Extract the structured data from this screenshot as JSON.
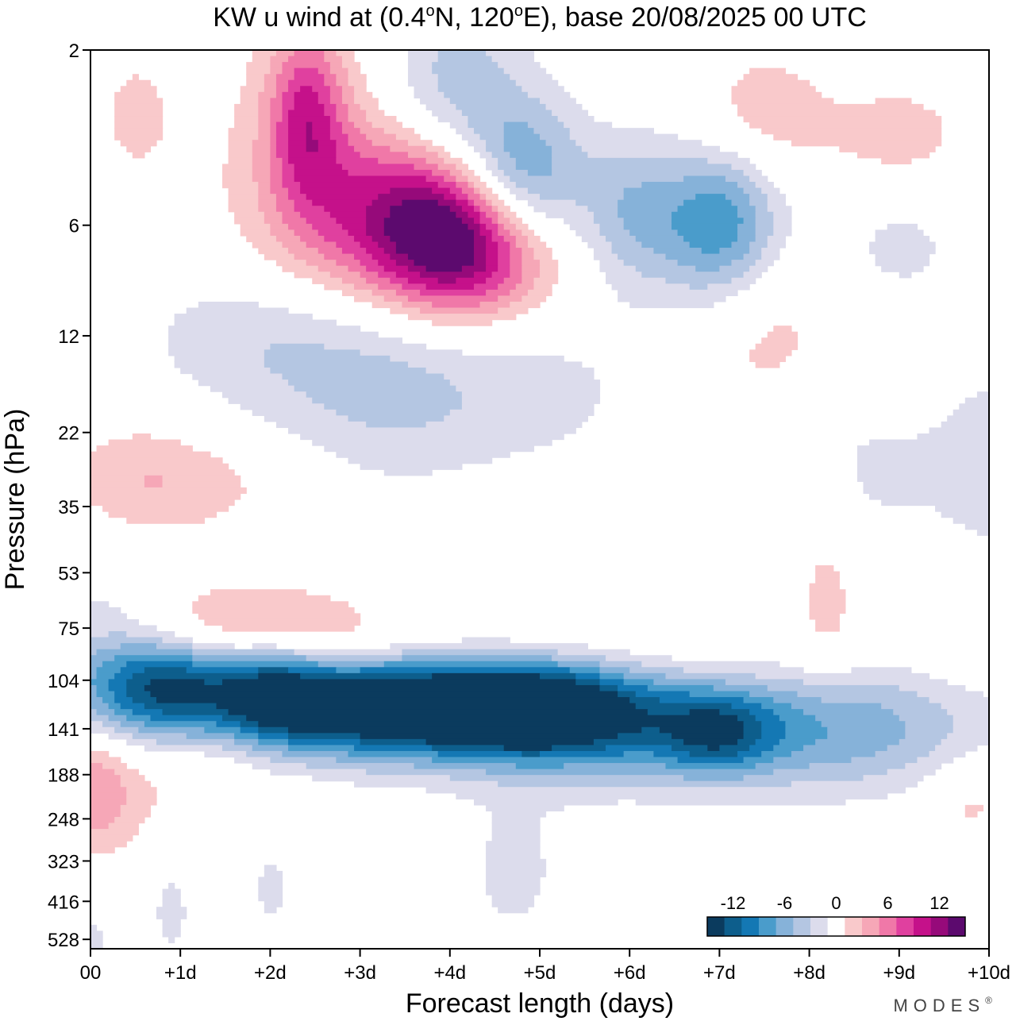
{
  "chart_data": {
    "type": "heatmap",
    "title_main": "KW u wind at (0.4",
    "title_deg1": "o",
    "title_mid": "N, 120",
    "title_deg2": "o",
    "title_end": "E),  base 20/08/2025  00 UTC",
    "xlabel": "Forecast length (days)",
    "ylabel": "Pressure (hPa)",
    "xlim": [
      0,
      10
    ],
    "x_ticks": [
      {
        "value": 0,
        "label": "00"
      },
      {
        "value": 1,
        "label": "+1d"
      },
      {
        "value": 2,
        "label": "+2d"
      },
      {
        "value": 3,
        "label": "+3d"
      },
      {
        "value": 4,
        "label": "+4d"
      },
      {
        "value": 5,
        "label": "+5d"
      },
      {
        "value": 6,
        "label": "+6d"
      },
      {
        "value": 7,
        "label": "+7d"
      },
      {
        "value": 8,
        "label": "+8d"
      },
      {
        "value": 9,
        "label": "+9d"
      },
      {
        "value": 10,
        "label": "+10d"
      }
    ],
    "y_ticks": [
      {
        "value": 2,
        "label": "2"
      },
      {
        "value": 6,
        "label": "6"
      },
      {
        "value": 12,
        "label": "12"
      },
      {
        "value": 22,
        "label": "22"
      },
      {
        "value": 35,
        "label": "35"
      },
      {
        "value": 53,
        "label": "53"
      },
      {
        "value": 75,
        "label": "75"
      },
      {
        "value": 104,
        "label": "104"
      },
      {
        "value": 141,
        "label": "141"
      },
      {
        "value": 188,
        "label": "188"
      },
      {
        "value": 248,
        "label": "248"
      },
      {
        "value": 323,
        "label": "323"
      },
      {
        "value": 416,
        "label": "416"
      },
      {
        "value": 528,
        "label": "528"
      }
    ],
    "contour_levels": [
      -16,
      -14,
      -12,
      -10,
      -8,
      -6,
      -4,
      -2,
      2,
      4,
      6,
      8,
      10,
      12,
      14,
      16
    ],
    "colorbar_colors": [
      "#0b3b5e",
      "#0d5e8c",
      "#1478b4",
      "#4a9ccb",
      "#86b2d9",
      "#b4c6e2",
      "#dcdcec",
      "#ffffff",
      "#f9c9cb",
      "#f6a7b7",
      "#f078a8",
      "#e0409f",
      "#c5118a",
      "#960a7a",
      "#5c0a6e"
    ],
    "colorbar_labels": [
      {
        "value": -12,
        "label": "-12"
      },
      {
        "value": -6,
        "label": "-6"
      },
      {
        "value": 0,
        "label": "0"
      },
      {
        "value": 6,
        "label": "6"
      },
      {
        "value": 12,
        "label": "12"
      }
    ],
    "features": [
      {
        "x": 4.0,
        "p": 122,
        "value": -13,
        "sx": 1.2,
        "sy": 0.04
      },
      {
        "x": 5.0,
        "p": 125,
        "value": -11,
        "sx": 0.7,
        "sy": 0.04
      },
      {
        "x": 3.0,
        "p": 120,
        "value": -10,
        "sx": 1.0,
        "sy": 0.045
      },
      {
        "x": 2.0,
        "p": 112,
        "value": -10,
        "sx": 0.45,
        "sy": 0.04
      },
      {
        "x": 1.0,
        "p": 108,
        "value": -10,
        "sx": 0.5,
        "sy": 0.04
      },
      {
        "x": 6.2,
        "p": 135,
        "value": -8,
        "sx": 0.8,
        "sy": 0.05
      },
      {
        "x": 7.0,
        "p": 145,
        "value": -9,
        "sx": 0.45,
        "sy": 0.035
      },
      {
        "x": 8.0,
        "p": 140,
        "value": -6,
        "sx": 0.6,
        "sy": 0.05
      },
      {
        "x": 9.2,
        "p": 140,
        "value": -5,
        "sx": 0.8,
        "sy": 0.05
      },
      {
        "x": 0.3,
        "p": 108,
        "value": -8,
        "sx": 0.6,
        "sy": 0.05
      },
      {
        "x": 1.5,
        "p": 75,
        "value": 4.5,
        "sx": 1.1,
        "sy": 0.035
      },
      {
        "x": 3.0,
        "p": 82,
        "value": 3.5,
        "sx": 1.3,
        "sy": 0.035
      },
      {
        "x": 5.5,
        "p": 90,
        "value": 2.5,
        "sx": 1.6,
        "sy": 0.03
      },
      {
        "x": 0.0,
        "p": 200,
        "value": 5,
        "sx": 0.35,
        "sy": 0.05
      },
      {
        "x": 1.0,
        "p": 195,
        "value": 2.6,
        "sx": 0.9,
        "sy": 0.06
      },
      {
        "x": 9.8,
        "p": 215,
        "value": 3,
        "sx": 0.35,
        "sy": 0.04
      },
      {
        "x": 4.0,
        "p": 6.5,
        "value": 11,
        "sx": 0.6,
        "sy": 0.06
      },
      {
        "x": 3.3,
        "p": 6.0,
        "value": 7,
        "sx": 0.8,
        "sy": 0.07
      },
      {
        "x": 2.4,
        "p": 3.0,
        "value": 8,
        "sx": 0.3,
        "sy": 0.07
      },
      {
        "x": 4.6,
        "p": 7.5,
        "value": 5,
        "sx": 0.6,
        "sy": 0.05
      },
      {
        "x": 2.8,
        "p": 4.5,
        "value": 4,
        "sx": 1.0,
        "sy": 0.12
      },
      {
        "x": 4.8,
        "p": 4.5,
        "value": -9,
        "sx": 0.5,
        "sy": 0.06
      },
      {
        "x": 4.0,
        "p": 2.5,
        "value": -6,
        "sx": 0.6,
        "sy": 0.07
      },
      {
        "x": 6.0,
        "p": 5.5,
        "value": -5,
        "sx": 0.4,
        "sy": 0.06
      },
      {
        "x": 7.0,
        "p": 6.0,
        "value": -10,
        "sx": 0.5,
        "sy": 0.06
      },
      {
        "x": 9.0,
        "p": 7.5,
        "value": -4,
        "sx": 0.5,
        "sy": 0.06
      },
      {
        "x": 3.0,
        "p": 13,
        "value": -4.5,
        "sx": 1.0,
        "sy": 0.09
      },
      {
        "x": 4.5,
        "p": 17,
        "value": -2.6,
        "sx": 1.5,
        "sy": 0.08
      },
      {
        "x": 1.5,
        "p": 12,
        "value": -2.4,
        "sx": 0.8,
        "sy": 0.05
      },
      {
        "x": 7.5,
        "p": 12,
        "value": 3.2,
        "sx": 0.6,
        "sy": 0.08
      },
      {
        "x": 9.0,
        "p": 12,
        "value": 3,
        "sx": 0.5,
        "sy": 0.07
      },
      {
        "x": 9.0,
        "p": 3.5,
        "value": 3,
        "sx": 0.6,
        "sy": 0.05
      },
      {
        "x": 7.5,
        "p": 3.0,
        "value": 3.5,
        "sx": 0.5,
        "sy": 0.05
      },
      {
        "x": 0.5,
        "p": 3.0,
        "value": 2.6,
        "sx": 0.3,
        "sy": 0.05
      },
      {
        "x": 0.5,
        "p": 30,
        "value": 3,
        "sx": 0.6,
        "sy": 0.05
      },
      {
        "x": 1.5,
        "p": 30,
        "value": 2.3,
        "sx": 0.8,
        "sy": 0.04
      },
      {
        "x": 5.0,
        "p": 42,
        "value": 2.4,
        "sx": 0.8,
        "sy": 0.04
      },
      {
        "x": 8.2,
        "p": 62,
        "value": 3,
        "sx": 0.25,
        "sy": 0.08
      },
      {
        "x": 9.8,
        "p": 65,
        "value": 3,
        "sx": 0.5,
        "sy": 0.06
      },
      {
        "x": 8.8,
        "p": 25,
        "value": -2.8,
        "sx": 0.8,
        "sy": 0.08
      },
      {
        "x": 10.0,
        "p": 32,
        "value": -3,
        "sx": 0.4,
        "sy": 0.1
      },
      {
        "x": 4.0,
        "p": 62,
        "value": -2.4,
        "sx": 0.7,
        "sy": 0.04
      },
      {
        "x": 0.2,
        "p": 60,
        "value": -2.3,
        "sx": 0.5,
        "sy": 0.05
      },
      {
        "x": 0.9,
        "p": 420,
        "value": -2.5,
        "sx": 0.25,
        "sy": 0.07
      },
      {
        "x": 2.0,
        "p": 365,
        "value": -2.5,
        "sx": 0.25,
        "sy": 0.06
      },
      {
        "x": 4.7,
        "p": 345,
        "value": -2.4,
        "sx": 0.55,
        "sy": 0.08
      },
      {
        "x": 0.05,
        "p": 540,
        "value": -2.5,
        "sx": 0.15,
        "sy": 0.03
      }
    ]
  },
  "brand": "MODES",
  "brand_mark": "®"
}
